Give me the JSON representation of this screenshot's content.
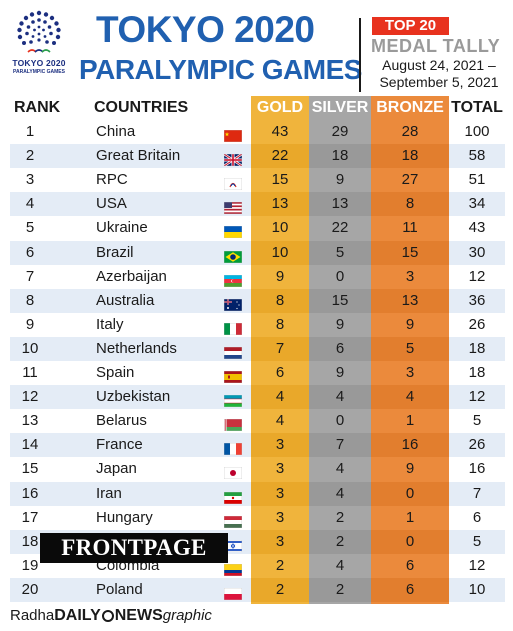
{
  "logo": {
    "line1": "TOKYO 2020",
    "line2": "PARALYMPIC GAMES"
  },
  "title": {
    "line1": "TOKYO 2020",
    "line2": "PARALYMPIC GAMES"
  },
  "badge": "TOP 20",
  "subtitle": "MEDAL TALLY",
  "dates": {
    "line1": "August 24, 2021 –",
    "line2": "September 5, 2021"
  },
  "headers": {
    "rank": "RANK",
    "countries": "COUNTRIES",
    "gold": "GOLD",
    "silver": "SILVER",
    "bronze": "BRONZE",
    "total": "TOTAL"
  },
  "colors": {
    "title": "#2060b0",
    "gold": "#f0b43c",
    "silver": "#a6a6a6",
    "bronze": "#eb8a3c",
    "badge": "#e8321e",
    "stripe": "#e4ecf6"
  },
  "rows": [
    {
      "rank": "1",
      "country": "China",
      "flag": "china-flag-icon",
      "gold": "43",
      "silver": "29",
      "bronze": "28",
      "total": "100"
    },
    {
      "rank": "2",
      "country": "Great Britain",
      "flag": "uk-flag-icon",
      "gold": "22",
      "silver": "18",
      "bronze": "18",
      "total": "58"
    },
    {
      "rank": "3",
      "country": "RPC",
      "flag": "rpc-flag-icon",
      "gold": "15",
      "silver": "9",
      "bronze": "27",
      "total": "51"
    },
    {
      "rank": "4",
      "country": "USA",
      "flag": "usa-flag-icon",
      "gold": "13",
      "silver": "13",
      "bronze": "8",
      "total": "34"
    },
    {
      "rank": "5",
      "country": "Ukraine",
      "flag": "ukraine-flag-icon",
      "gold": "10",
      "silver": "22",
      "bronze": "11",
      "total": "43"
    },
    {
      "rank": "6",
      "country": "Brazil",
      "flag": "brazil-flag-icon",
      "gold": "10",
      "silver": "5",
      "bronze": "15",
      "total": "30"
    },
    {
      "rank": "7",
      "country": "Azerbaijan",
      "flag": "azerbaijan-flag-icon",
      "gold": "9",
      "silver": "0",
      "bronze": "3",
      "total": "12"
    },
    {
      "rank": "8",
      "country": "Australia",
      "flag": "australia-flag-icon",
      "gold": "8",
      "silver": "15",
      "bronze": "13",
      "total": "36"
    },
    {
      "rank": "9",
      "country": "Italy",
      "flag": "italy-flag-icon",
      "gold": "8",
      "silver": "9",
      "bronze": "9",
      "total": "26"
    },
    {
      "rank": "10",
      "country": "Netherlands",
      "flag": "netherlands-flag-icon",
      "gold": "7",
      "silver": "6",
      "bronze": "5",
      "total": "18"
    },
    {
      "rank": "11",
      "country": "Spain",
      "flag": "spain-flag-icon",
      "gold": "6",
      "silver": "9",
      "bronze": "3",
      "total": "18"
    },
    {
      "rank": "12",
      "country": "Uzbekistan",
      "flag": "uzbekistan-flag-icon",
      "gold": "4",
      "silver": "4",
      "bronze": "4",
      "total": "12"
    },
    {
      "rank": "13",
      "country": "Belarus",
      "flag": "belarus-flag-icon",
      "gold": "4",
      "silver": "0",
      "bronze": "1",
      "total": "5"
    },
    {
      "rank": "14",
      "country": "France",
      "flag": "france-flag-icon",
      "gold": "3",
      "silver": "7",
      "bronze": "16",
      "total": "26"
    },
    {
      "rank": "15",
      "country": "Japan",
      "flag": "japan-flag-icon",
      "gold": "3",
      "silver": "4",
      "bronze": "9",
      "total": "16"
    },
    {
      "rank": "16",
      "country": "Iran",
      "flag": "iran-flag-icon",
      "gold": "3",
      "silver": "4",
      "bronze": "0",
      "total": "7"
    },
    {
      "rank": "17",
      "country": "Hungary",
      "flag": "hungary-flag-icon",
      "gold": "3",
      "silver": "2",
      "bronze": "1",
      "total": "6"
    },
    {
      "rank": "18",
      "country": "Israel",
      "flag": "israel-flag-icon",
      "gold": "3",
      "silver": "2",
      "bronze": "0",
      "total": "5"
    },
    {
      "rank": "19",
      "country": "Colombia",
      "flag": "colombia-flag-icon",
      "gold": "2",
      "silver": "4",
      "bronze": "6",
      "total": "12"
    },
    {
      "rank": "20",
      "country": "Poland",
      "flag": "poland-flag-icon",
      "gold": "2",
      "silver": "2",
      "bronze": "6",
      "total": "10"
    }
  ],
  "watermark": "FRONTPAGE",
  "footer": {
    "prefix": "Radha",
    "daily": "DAILY",
    "news": "NEWS",
    "graphic": "graphic"
  }
}
